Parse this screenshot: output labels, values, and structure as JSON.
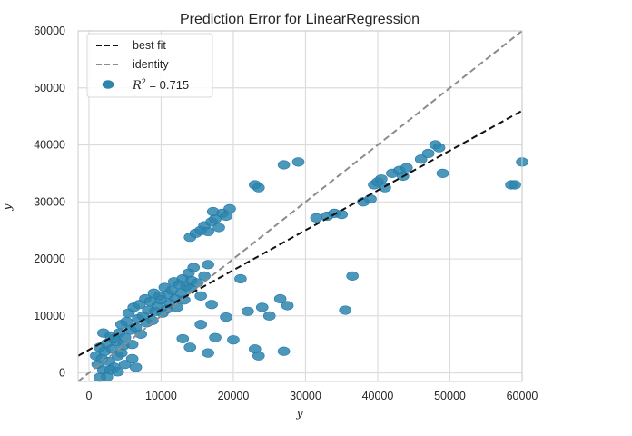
{
  "chart_data": {
    "type": "scatter",
    "title": "Prediction Error for LinearRegression",
    "xlabel": "y",
    "ylabel": "y",
    "xlim": [
      -1500,
      60000
    ],
    "ylim": [
      -1500,
      60000
    ],
    "x_ticks": [
      0,
      10000,
      20000,
      30000,
      40000,
      50000,
      60000
    ],
    "x_tick_labels": [
      "0",
      "10000",
      "20000",
      "30000",
      "40000",
      "50000",
      "60000"
    ],
    "y_ticks": [
      0,
      10000,
      20000,
      30000,
      40000,
      50000,
      60000
    ],
    "y_tick_labels": [
      "0",
      "10000",
      "20000",
      "30000",
      "40000",
      "50000",
      "60000"
    ],
    "grid": true,
    "legend_position": "top-left",
    "legend": {
      "best_fit": "best fit",
      "identity": "identity",
      "r2_symbol": "R",
      "r2_sup": "2",
      "r2_value": " = 0.715"
    },
    "colors": {
      "points": "#1f77b4",
      "point_fill": "#2e86ab",
      "best_fit": "#111111",
      "identity": "#8c8c8c",
      "grid": "#dcdcdc",
      "frame": "#cccccc"
    },
    "lines": {
      "best_fit": {
        "x": [
          -1500,
          60000
        ],
        "y": [
          3000,
          46000
        ]
      },
      "identity": {
        "x": [
          -1500,
          60000
        ],
        "y": [
          -1500,
          60000
        ]
      }
    },
    "series": [
      {
        "name": "R² = 0.715",
        "points": [
          [
            1000,
            3000
          ],
          [
            1200,
            1500
          ],
          [
            1500,
            4500
          ],
          [
            1800,
            2500
          ],
          [
            2000,
            500
          ],
          [
            2200,
            3800
          ],
          [
            2500,
            5200
          ],
          [
            2800,
            2000
          ],
          [
            3000,
            6500
          ],
          [
            3200,
            4200
          ],
          [
            3500,
            1000
          ],
          [
            3800,
            5500
          ],
          [
            4000,
            3000
          ],
          [
            4200,
            7000
          ],
          [
            4500,
            8500
          ],
          [
            4800,
            4800
          ],
          [
            5000,
            6200
          ],
          [
            5200,
            9000
          ],
          [
            5500,
            10500
          ],
          [
            5800,
            7500
          ],
          [
            6000,
            5000
          ],
          [
            6200,
            11500
          ],
          [
            6500,
            8000
          ],
          [
            6800,
            9500
          ],
          [
            7000,
            12000
          ],
          [
            7200,
            6800
          ],
          [
            7500,
            10000
          ],
          [
            7800,
            13000
          ],
          [
            8000,
            8800
          ],
          [
            8200,
            11000
          ],
          [
            8500,
            12500
          ],
          [
            8800,
            9200
          ],
          [
            9000,
            14000
          ],
          [
            9200,
            10800
          ],
          [
            9500,
            11800
          ],
          [
            9800,
            13500
          ],
          [
            10000,
            12800
          ],
          [
            10200,
            10500
          ],
          [
            10500,
            15000
          ],
          [
            10800,
            11200
          ],
          [
            11000,
            13800
          ],
          [
            11200,
            12200
          ],
          [
            11500,
            14500
          ],
          [
            11800,
            16000
          ],
          [
            12000,
            13000
          ],
          [
            12200,
            11500
          ],
          [
            12500,
            15500
          ],
          [
            12800,
            14000
          ],
          [
            13000,
            16500
          ],
          [
            13200,
            12800
          ],
          [
            13500,
            15200
          ],
          [
            13800,
            17500
          ],
          [
            14000,
            14800
          ],
          [
            14200,
            16200
          ],
          [
            14500,
            18500
          ],
          [
            15000,
            15800
          ],
          [
            15500,
            13500
          ],
          [
            16000,
            17000
          ],
          [
            16500,
            19000
          ],
          [
            17000,
            12000
          ],
          [
            3000,
            500
          ],
          [
            4000,
            200
          ],
          [
            5000,
            1500
          ],
          [
            6000,
            2500
          ],
          [
            2500,
            -700
          ],
          [
            1500,
            -800
          ],
          [
            6500,
            1000
          ],
          [
            3500,
            6000
          ],
          [
            2000,
            7000
          ],
          [
            4500,
            3500
          ],
          [
            14000,
            23800
          ],
          [
            14800,
            24500
          ],
          [
            15500,
            25000
          ],
          [
            16000,
            25800
          ],
          [
            16500,
            24800
          ],
          [
            17000,
            26500
          ],
          [
            17500,
            27000
          ],
          [
            18000,
            25500
          ],
          [
            18500,
            28000
          ],
          [
            19000,
            27500
          ],
          [
            19500,
            28800
          ],
          [
            17200,
            28300
          ],
          [
            13000,
            6000
          ],
          [
            14000,
            4500
          ],
          [
            15500,
            8500
          ],
          [
            16500,
            3500
          ],
          [
            17500,
            6200
          ],
          [
            19000,
            9800
          ],
          [
            20000,
            5800
          ],
          [
            21000,
            16500
          ],
          [
            22000,
            10800
          ],
          [
            23000,
            4200
          ],
          [
            23500,
            3000
          ],
          [
            24000,
            11500
          ],
          [
            25000,
            10000
          ],
          [
            26500,
            13000
          ],
          [
            27000,
            3800
          ],
          [
            27500,
            11800
          ],
          [
            23000,
            33000
          ],
          [
            27000,
            36500
          ],
          [
            29000,
            37000
          ],
          [
            23500,
            32500
          ],
          [
            31500,
            27200
          ],
          [
            33000,
            27500
          ],
          [
            34000,
            28000
          ],
          [
            35000,
            27800
          ],
          [
            35500,
            11000
          ],
          [
            36500,
            17000
          ],
          [
            38000,
            30000
          ],
          [
            39000,
            30500
          ],
          [
            39500,
            33000
          ],
          [
            40000,
            33500
          ],
          [
            40500,
            34000
          ],
          [
            41000,
            32500
          ],
          [
            42000,
            35000
          ],
          [
            43000,
            35500
          ],
          [
            43500,
            34500
          ],
          [
            44000,
            36000
          ],
          [
            46000,
            37500
          ],
          [
            47000,
            38500
          ],
          [
            48000,
            40000
          ],
          [
            48500,
            39500
          ],
          [
            49000,
            35000
          ],
          [
            58500,
            33000
          ],
          [
            59000,
            33000
          ],
          [
            60000,
            37000
          ]
        ]
      }
    ]
  }
}
